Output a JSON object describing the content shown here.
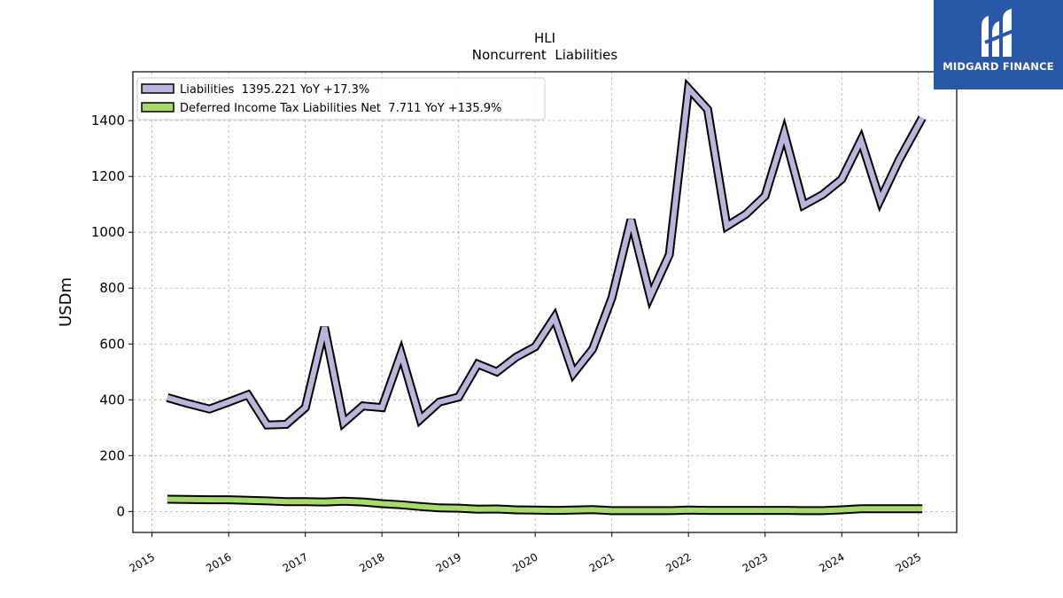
{
  "chart_data": {
    "type": "line",
    "title": "HLI",
    "subtitle": "Noncurrent  Liabilities",
    "ylabel": "USDm",
    "xlabel": "",
    "xlim": [
      2014.75,
      2025.5
    ],
    "ylim": [
      -75,
      1575
    ],
    "yticks": [
      0,
      200,
      400,
      600,
      800,
      1000,
      1200,
      1400
    ],
    "xticks": [
      "2015",
      "2016",
      "2017",
      "2018",
      "2019",
      "2020",
      "2021",
      "2022",
      "2023",
      "2024",
      "2025"
    ],
    "grid": true,
    "legend_position": "top-left",
    "series": [
      {
        "name": "Liabilities",
        "legend_label": "Liabilities  1395.221 YoY +17.3%",
        "color": "#b9b6dc",
        "x": [
          2015.2,
          2015.45,
          2015.75,
          2016.0,
          2016.25,
          2016.5,
          2016.75,
          2017.0,
          2017.25,
          2017.5,
          2017.75,
          2018.0,
          2018.25,
          2018.5,
          2018.75,
          2019.0,
          2019.25,
          2019.5,
          2019.75,
          2020.0,
          2020.25,
          2020.5,
          2020.75,
          2021.0,
          2021.25,
          2021.5,
          2021.75,
          2022.0,
          2022.25,
          2022.5,
          2022.75,
          2023.0,
          2023.25,
          2023.5,
          2023.75,
          2024.0,
          2024.25,
          2024.5,
          2024.75,
          2025.05
        ],
        "values": [
          408,
          388,
          367,
          392,
          418,
          310,
          312,
          372,
          660,
          318,
          378,
          372,
          565,
          330,
          392,
          410,
          528,
          500,
          553,
          590,
          695,
          495,
          582,
          765,
          1045,
          770,
          920,
          1515,
          1440,
          1022,
          1065,
          1130,
          1355,
          1097,
          1135,
          1190,
          1330,
          1115,
          1260,
          1410
        ]
      },
      {
        "name": "Deferred Income Tax Liabilities Net",
        "legend_label": "Deferred Income Tax Liabilities Net  7.711 YoY +135.9%",
        "color": "#a7d96b",
        "x": [
          2015.2,
          2015.45,
          2015.75,
          2016.0,
          2016.25,
          2016.5,
          2016.75,
          2017.0,
          2017.25,
          2017.5,
          2017.75,
          2018.0,
          2018.25,
          2018.5,
          2018.75,
          2019.0,
          2019.25,
          2019.5,
          2019.75,
          2020.0,
          2020.25,
          2020.5,
          2020.75,
          2021.0,
          2021.25,
          2021.5,
          2021.75,
          2022.0,
          2022.25,
          2022.5,
          2022.75,
          2023.0,
          2023.25,
          2023.5,
          2023.75,
          2024.0,
          2024.25,
          2024.5,
          2024.75,
          2025.05
        ],
        "values": [
          44,
          43,
          42,
          42,
          40,
          38,
          35,
          35,
          34,
          37,
          34,
          28,
          24,
          18,
          13,
          12,
          8,
          9,
          6,
          5,
          4,
          5,
          7,
          3,
          3,
          3,
          3,
          5,
          4,
          4,
          4,
          4,
          4,
          3,
          3,
          6,
          10,
          10,
          10,
          10
        ]
      }
    ]
  },
  "logo": {
    "text": "MIDGARD FINANCE",
    "background": "#2a58a8"
  }
}
